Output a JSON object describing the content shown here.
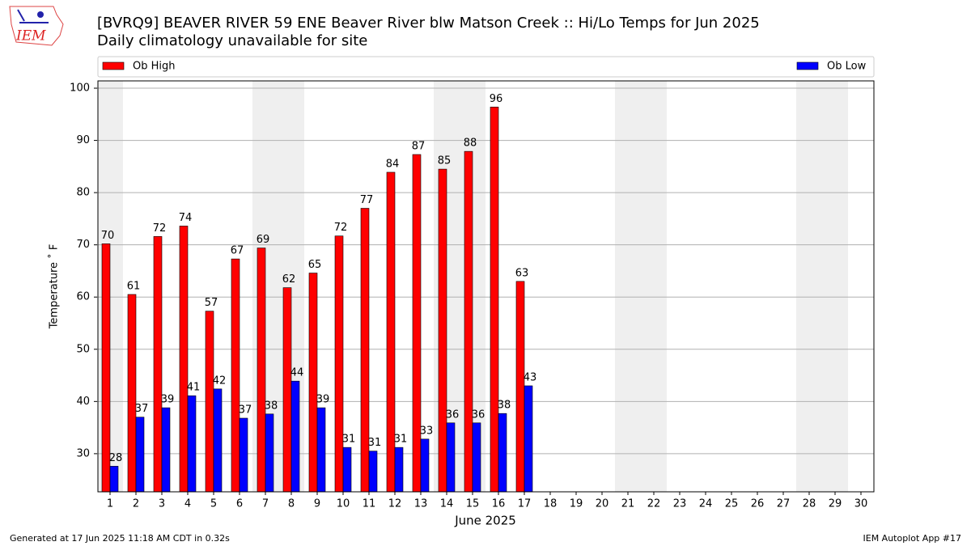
{
  "logo_text": "IEM",
  "footer_left": "Generated at 17 Jun 2025 11:18 AM CDT in 0.32s",
  "footer_right": "IEM Autoplot App #17",
  "chart_data": {
    "type": "bar",
    "title": "[BVRQ9] BEAVER RIVER 59 ENE Beaver River blw Matson Creek :: Hi/Lo Temps for Jun 2025",
    "subtitle": "Daily climatology unavailable for site",
    "x_label": "June 2025",
    "y_label": "Temperature $^\\circ$F",
    "categories": [
      "1",
      "2",
      "3",
      "4",
      "5",
      "6",
      "7",
      "8",
      "9",
      "10",
      "11",
      "12",
      "13",
      "14",
      "15",
      "16",
      "17",
      "18",
      "19",
      "20",
      "21",
      "22",
      "23",
      "24",
      "25",
      "26",
      "27",
      "28",
      "29",
      "30"
    ],
    "series": [
      {
        "name": "Ob High",
        "color": "#ff0000",
        "values": [
          70.2,
          60.5,
          71.6,
          73.6,
          57.3,
          67.3,
          69.4,
          61.8,
          64.6,
          71.7,
          77.0,
          83.9,
          87.3,
          84.5,
          87.9,
          96.4,
          63.0,
          null,
          null,
          null,
          null,
          null,
          null,
          null,
          null,
          null,
          null,
          null,
          null,
          null
        ],
        "value_labels": [
          "70",
          "61",
          "72",
          "74",
          "57",
          "67",
          "69",
          "62",
          "65",
          "72",
          "77",
          "84",
          "87",
          "85",
          "88",
          "96",
          "63",
          null,
          null,
          null,
          null,
          null,
          null,
          null,
          null,
          null,
          null,
          null,
          null,
          null
        ]
      },
      {
        "name": "Ob Low",
        "color": "#0000ff",
        "values": [
          27.6,
          37.0,
          38.8,
          41.1,
          42.4,
          36.8,
          37.6,
          43.9,
          38.8,
          31.2,
          30.5,
          31.2,
          32.8,
          35.9,
          35.9,
          37.7,
          43.0,
          null,
          null,
          null,
          null,
          null,
          null,
          null,
          null,
          null,
          null,
          null,
          null,
          null
        ],
        "value_labels": [
          "28",
          "37",
          "39",
          "41",
          "42",
          "37",
          "38",
          "44",
          "39",
          "31",
          "31",
          "31",
          "33",
          "36",
          "36",
          "38",
          "43",
          null,
          null,
          null,
          null,
          null,
          null,
          null,
          null,
          null,
          null,
          null,
          null,
          null
        ]
      }
    ],
    "ylim": [
      22.7,
      101.4
    ],
    "yticks": [
      30,
      40,
      50,
      60,
      70,
      80,
      90,
      100
    ],
    "grid": true
  }
}
